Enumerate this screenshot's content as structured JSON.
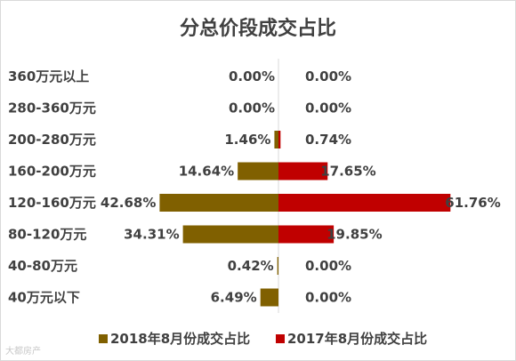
{
  "chart_data": {
    "type": "bar",
    "orientation": "horizontal-diverging",
    "title": "分总价段成交占比",
    "categories": [
      "360万元以上",
      "280-360万元",
      "200-280万元",
      "160-200万元",
      "120-160万元",
      "80-120万元",
      "40-80万元",
      "40万元以下"
    ],
    "series": [
      {
        "name": "2018年8月份成交占比",
        "side": "left",
        "color": "#806000",
        "values": [
          0.0,
          0.0,
          1.46,
          14.64,
          42.68,
          34.31,
          0.42,
          6.49
        ],
        "labels": [
          "0.00%",
          "0.00%",
          "1.46%",
          "14.64%",
          "42.68%",
          "34.31%",
          "0.42%",
          "6.49%"
        ]
      },
      {
        "name": "2017年8月份成交占比",
        "side": "right",
        "color": "#c00000",
        "values": [
          0.0,
          0.0,
          0.74,
          17.65,
          61.76,
          19.85,
          0.0,
          0.0
        ],
        "labels": [
          "0.00%",
          "0.00%",
          "0.74%",
          "17.65%",
          "61.76%",
          "19.85%",
          "0.00%",
          "0.00%"
        ]
      }
    ],
    "unit": "%",
    "legend_position": "bottom",
    "grid": false
  },
  "watermark": "大都房产"
}
